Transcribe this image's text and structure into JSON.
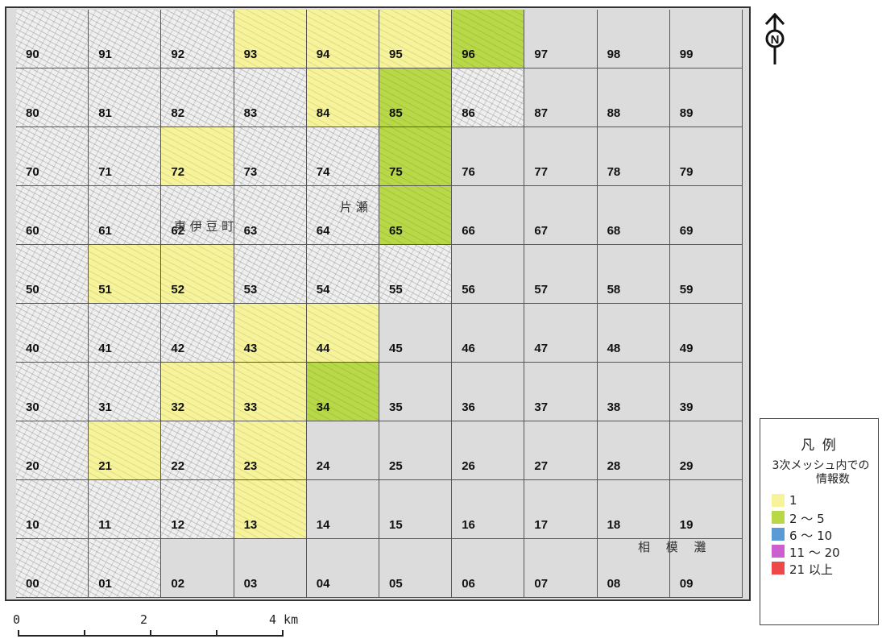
{
  "map": {
    "colors": {
      "sea": "#dcdcdc",
      "land": "#efefef",
      "count_1": "#f6f39a",
      "count_2_5": "#b8d848",
      "count_6_10": "#5b9ad5",
      "count_11_20": "#cc5fcf",
      "count_21_plus": "#ef4848"
    },
    "rows": [
      [
        {
          "label": "90",
          "fill": "land"
        },
        {
          "label": "91",
          "fill": "land"
        },
        {
          "label": "92",
          "fill": "land"
        },
        {
          "label": "93",
          "fill": "1"
        },
        {
          "label": "94",
          "fill": "1"
        },
        {
          "label": "95",
          "fill": "1"
        },
        {
          "label": "96",
          "fill": "2-5"
        },
        {
          "label": "97",
          "fill": "sea"
        },
        {
          "label": "98",
          "fill": "sea"
        },
        {
          "label": "99",
          "fill": "sea"
        }
      ],
      [
        {
          "label": "80",
          "fill": "land"
        },
        {
          "label": "81",
          "fill": "land"
        },
        {
          "label": "82",
          "fill": "land"
        },
        {
          "label": "83",
          "fill": "land"
        },
        {
          "label": "84",
          "fill": "1"
        },
        {
          "label": "85",
          "fill": "2-5"
        },
        {
          "label": "86",
          "fill": "land"
        },
        {
          "label": "87",
          "fill": "sea"
        },
        {
          "label": "88",
          "fill": "sea"
        },
        {
          "label": "89",
          "fill": "sea"
        }
      ],
      [
        {
          "label": "70",
          "fill": "land"
        },
        {
          "label": "71",
          "fill": "land"
        },
        {
          "label": "72",
          "fill": "1"
        },
        {
          "label": "73",
          "fill": "land"
        },
        {
          "label": "74",
          "fill": "land"
        },
        {
          "label": "75",
          "fill": "2-5"
        },
        {
          "label": "76",
          "fill": "sea"
        },
        {
          "label": "77",
          "fill": "sea"
        },
        {
          "label": "78",
          "fill": "sea"
        },
        {
          "label": "79",
          "fill": "sea"
        }
      ],
      [
        {
          "label": "60",
          "fill": "land"
        },
        {
          "label": "61",
          "fill": "land"
        },
        {
          "label": "62",
          "fill": "land"
        },
        {
          "label": "63",
          "fill": "land"
        },
        {
          "label": "64",
          "fill": "land"
        },
        {
          "label": "65",
          "fill": "2-5"
        },
        {
          "label": "66",
          "fill": "sea"
        },
        {
          "label": "67",
          "fill": "sea"
        },
        {
          "label": "68",
          "fill": "sea"
        },
        {
          "label": "69",
          "fill": "sea"
        }
      ],
      [
        {
          "label": "50",
          "fill": "land"
        },
        {
          "label": "51",
          "fill": "1"
        },
        {
          "label": "52",
          "fill": "1"
        },
        {
          "label": "53",
          "fill": "land"
        },
        {
          "label": "54",
          "fill": "land"
        },
        {
          "label": "55",
          "fill": "land"
        },
        {
          "label": "56",
          "fill": "sea"
        },
        {
          "label": "57",
          "fill": "sea"
        },
        {
          "label": "58",
          "fill": "sea"
        },
        {
          "label": "59",
          "fill": "sea"
        }
      ],
      [
        {
          "label": "40",
          "fill": "land"
        },
        {
          "label": "41",
          "fill": "land"
        },
        {
          "label": "42",
          "fill": "land"
        },
        {
          "label": "43",
          "fill": "1"
        },
        {
          "label": "44",
          "fill": "1"
        },
        {
          "label": "45",
          "fill": "sea"
        },
        {
          "label": "46",
          "fill": "sea"
        },
        {
          "label": "47",
          "fill": "sea"
        },
        {
          "label": "48",
          "fill": "sea"
        },
        {
          "label": "49",
          "fill": "sea"
        }
      ],
      [
        {
          "label": "30",
          "fill": "land"
        },
        {
          "label": "31",
          "fill": "land"
        },
        {
          "label": "32",
          "fill": "1"
        },
        {
          "label": "33",
          "fill": "1"
        },
        {
          "label": "34",
          "fill": "2-5"
        },
        {
          "label": "35",
          "fill": "sea"
        },
        {
          "label": "36",
          "fill": "sea"
        },
        {
          "label": "37",
          "fill": "sea"
        },
        {
          "label": "38",
          "fill": "sea"
        },
        {
          "label": "39",
          "fill": "sea"
        }
      ],
      [
        {
          "label": "20",
          "fill": "land"
        },
        {
          "label": "21",
          "fill": "1"
        },
        {
          "label": "22",
          "fill": "land"
        },
        {
          "label": "23",
          "fill": "1"
        },
        {
          "label": "24",
          "fill": "sea"
        },
        {
          "label": "25",
          "fill": "sea"
        },
        {
          "label": "26",
          "fill": "sea"
        },
        {
          "label": "27",
          "fill": "sea"
        },
        {
          "label": "28",
          "fill": "sea"
        },
        {
          "label": "29",
          "fill": "sea"
        }
      ],
      [
        {
          "label": "10",
          "fill": "land"
        },
        {
          "label": "11",
          "fill": "land"
        },
        {
          "label": "12",
          "fill": "land"
        },
        {
          "label": "13",
          "fill": "1"
        },
        {
          "label": "14",
          "fill": "sea"
        },
        {
          "label": "15",
          "fill": "sea"
        },
        {
          "label": "16",
          "fill": "sea"
        },
        {
          "label": "17",
          "fill": "sea"
        },
        {
          "label": "18",
          "fill": "sea"
        },
        {
          "label": "19",
          "fill": "sea"
        }
      ],
      [
        {
          "label": "00",
          "fill": "land"
        },
        {
          "label": "01",
          "fill": "land"
        },
        {
          "label": "02",
          "fill": "sea"
        },
        {
          "label": "03",
          "fill": "sea"
        },
        {
          "label": "04",
          "fill": "sea"
        },
        {
          "label": "05",
          "fill": "sea"
        },
        {
          "label": "06",
          "fill": "sea"
        },
        {
          "label": "07",
          "fill": "sea"
        },
        {
          "label": "08",
          "fill": "sea"
        },
        {
          "label": "09",
          "fill": "sea"
        }
      ]
    ],
    "place_labels": {
      "higashi_izu": "東 伊 豆 町",
      "kataseshi": "片 瀬",
      "sagami_bay": "相　 模　 灘"
    }
  },
  "north_arrow": {
    "letter": "N"
  },
  "scale_bar": {
    "labels": [
      "0",
      "2",
      "4 km"
    ]
  },
  "legend": {
    "title": "凡 例",
    "subtitle_line1": "3次メッシュ内での",
    "subtitle_line2": "情報数",
    "items": [
      {
        "label": "1",
        "color": "#f6f39a"
      },
      {
        "label": "2 ～ 5",
        "color": "#b8d848"
      },
      {
        "label": "6 ～ 10",
        "color": "#5b9ad5"
      },
      {
        "label": "11 ～ 20",
        "color": "#cc5fcf"
      },
      {
        "label": "21 以上",
        "color": "#ef4848"
      }
    ]
  }
}
